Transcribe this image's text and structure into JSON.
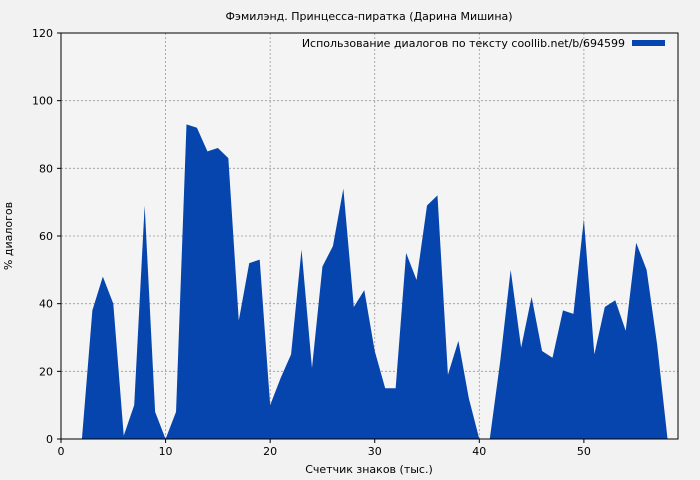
{
  "chart_data": {
    "type": "area",
    "title": "Фэмилэнд. Принцесса-пиратка (Дарина Мишина)",
    "xlabel": "Счетчик знаков (тыс.)",
    "ylabel": "% диалогов",
    "xlim": [
      0,
      59
    ],
    "ylim": [
      0,
      120
    ],
    "xticks": [
      "0",
      "10",
      "20",
      "30",
      "40",
      "50"
    ],
    "yticks": [
      "0",
      "20",
      "40",
      "60",
      "80",
      "100",
      "120"
    ],
    "grid": true,
    "legend_position": "top-right",
    "colors": {
      "series": "#0645ad",
      "background": "#f2f2f2",
      "plot": "#f4f4f4",
      "grid": "#999999"
    },
    "series": [
      {
        "name": "Использование диалогов по тексту coollib.net/b/694599",
        "x": [
          2,
          3,
          4,
          5,
          6,
          7,
          8,
          9,
          10,
          11,
          12,
          13,
          14,
          15,
          16,
          17,
          18,
          19,
          20,
          21,
          22,
          23,
          24,
          25,
          26,
          27,
          28,
          29,
          30,
          31,
          32,
          33,
          34,
          35,
          36,
          37,
          38,
          39,
          40,
          41,
          42,
          43,
          44,
          45,
          46,
          47,
          48,
          49,
          50,
          51,
          52,
          53,
          54,
          55,
          56,
          57,
          58
        ],
        "values": [
          0,
          38,
          48,
          40,
          1,
          10,
          69,
          8,
          0,
          8,
          93,
          92,
          85,
          86,
          83,
          35,
          52,
          53,
          10,
          18,
          25,
          56,
          21,
          51,
          57,
          74,
          39,
          44,
          26,
          15,
          15,
          55,
          47,
          69,
          72,
          19,
          29,
          12,
          0,
          0,
          23,
          50,
          27,
          42,
          26,
          24,
          38,
          37,
          65,
          25,
          39,
          41,
          32,
          58,
          50,
          28,
          0
        ]
      }
    ]
  }
}
